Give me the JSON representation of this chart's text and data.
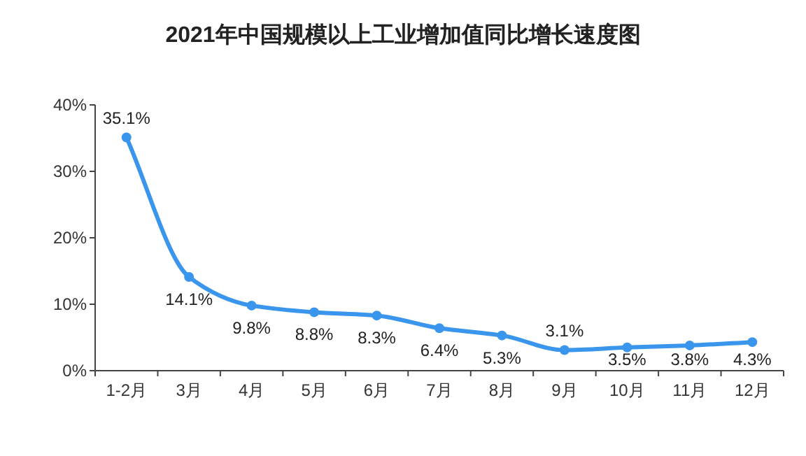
{
  "chart_data": {
    "type": "line",
    "title": "2021年中国规模以上工业增加值同比增长速度图",
    "categories": [
      "1-2月",
      "3月",
      "4月",
      "5月",
      "6月",
      "7月",
      "8月",
      "9月",
      "10月",
      "11月",
      "12月"
    ],
    "series": [
      {
        "color": "#3a96ec",
        "values": [
          35.1,
          14.1,
          9.8,
          8.8,
          8.3,
          6.4,
          5.3,
          3.1,
          3.5,
          3.8,
          4.3
        ],
        "value_labels": [
          "35.1%",
          "14.1%",
          "9.8%",
          "8.8%",
          "8.3%",
          "6.4%",
          "5.3%",
          "3.1%",
          "3.5%",
          "3.8%",
          "4.3%"
        ]
      }
    ],
    "ylim": [
      0,
      40
    ],
    "yticks": [
      {
        "value": 0,
        "label": "0%"
      },
      {
        "value": 10,
        "label": "10%"
      },
      {
        "value": 20,
        "label": "20%"
      },
      {
        "value": 30,
        "label": "30%"
      },
      {
        "value": 40,
        "label": "40%"
      }
    ],
    "grid": false,
    "marker": "circle",
    "line_style": "solid"
  }
}
